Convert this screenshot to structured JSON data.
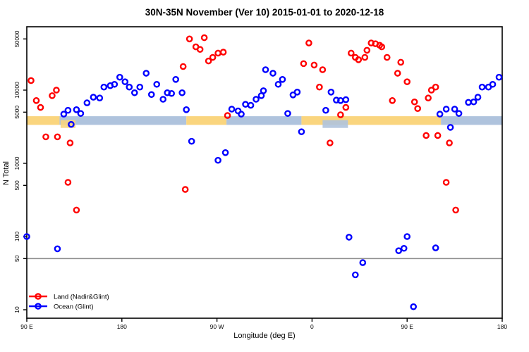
{
  "title": "30N-35N November (Ver 10)   2015-01-01 to 2020-12-18",
  "colors": {
    "land_series": "#ff0000",
    "ocean_series": "#0000ff",
    "band_land": "#fad57e",
    "band_ocean": "#afc3dd",
    "reference_line": "#8c8c8c",
    "axis": "#000000"
  },
  "legend": {
    "items": [
      {
        "label": "Land (Nadir&Glint)",
        "color": "#ff0000"
      },
      {
        "label": "Ocean (Glint)",
        "color": "#0000ff"
      }
    ]
  },
  "chart_data": {
    "type": "scatter",
    "title": "30N-35N November (Ver 10)   2015-01-01 to 2020-12-18",
    "xlabel": "Longitude (deg E)",
    "ylabel": "N Total",
    "x_axis": {
      "note": "longitude axis starts at 90E and wraps eastward 450 degrees",
      "range_deg": [
        90,
        540
      ],
      "ticks": [
        {
          "deg": 90,
          "label": "90 E"
        },
        {
          "deg": 180,
          "label": "180"
        },
        {
          "deg": 270,
          "label": "90 W"
        },
        {
          "deg": 360,
          "label": "0"
        },
        {
          "deg": 450,
          "label": "90 E"
        },
        {
          "deg": 540,
          "label": "180"
        }
      ]
    },
    "y_axis": {
      "scale": "log",
      "range": [
        8,
        70000
      ],
      "ticks": [
        10,
        50,
        100,
        500,
        1000,
        5000,
        10000,
        50000
      ]
    },
    "reference_line": {
      "value": 50
    },
    "land_ocean_band": {
      "top_value": 4400,
      "bottom_value": 3350,
      "segments": [
        {
          "from": 90,
          "to": 121,
          "type": "land"
        },
        {
          "from": 121,
          "to": 241,
          "type": "ocean"
        },
        {
          "from": 241,
          "to": 279,
          "type": "land"
        },
        {
          "from": 279,
          "to": 350,
          "type": "ocean"
        },
        {
          "from": 350,
          "to": 482,
          "type": "land"
        },
        {
          "from": 482,
          "to": 540,
          "type": "ocean"
        }
      ],
      "lower_patches": [
        {
          "from": 122,
          "to": 136,
          "type": "land"
        },
        {
          "from": 370,
          "to": 394,
          "type": "ocean"
        }
      ]
    },
    "series": [
      {
        "name": "Land (Nadir&Glint)",
        "color": "#ff0000",
        "points": [
          [
            94,
            13500
          ],
          [
            99,
            7200
          ],
          [
            103,
            5800
          ],
          [
            114,
            8400
          ],
          [
            118,
            10000
          ],
          [
            108,
            2300
          ],
          [
            119,
            2300
          ],
          [
            131,
            1900
          ],
          [
            129,
            550
          ],
          [
            137,
            230
          ],
          [
            240,
            440
          ],
          [
            238,
            21000
          ],
          [
            244,
            50000
          ],
          [
            258,
            52000
          ],
          [
            250,
            39000
          ],
          [
            254,
            36000
          ],
          [
            262,
            25000
          ],
          [
            266,
            28000
          ],
          [
            271,
            32000
          ],
          [
            276,
            33000
          ],
          [
            280,
            4500
          ],
          [
            352,
            23000
          ],
          [
            357,
            44000
          ],
          [
            362,
            22000
          ],
          [
            370,
            19000
          ],
          [
            367,
            11000
          ],
          [
            387,
            4600
          ],
          [
            392,
            5800
          ],
          [
            377,
            1900
          ],
          [
            397,
            32000
          ],
          [
            401,
            28000
          ],
          [
            404,
            26000
          ],
          [
            410,
            28000
          ],
          [
            412,
            35000
          ],
          [
            416,
            44000
          ],
          [
            420,
            43000
          ],
          [
            424,
            41000
          ],
          [
            426,
            39000
          ],
          [
            431,
            28000
          ],
          [
            436,
            7200
          ],
          [
            441,
            17000
          ],
          [
            444,
            24000
          ],
          [
            450,
            13000
          ],
          [
            457,
            6900
          ],
          [
            460,
            5600
          ],
          [
            468,
            2400
          ],
          [
            470,
            7800
          ],
          [
            473,
            10000
          ],
          [
            477,
            11000
          ],
          [
            479,
            2400
          ],
          [
            490,
            1900
          ],
          [
            487,
            550
          ],
          [
            496,
            230
          ]
        ]
      },
      {
        "name": "Ocean (Glint)",
        "color": "#0000ff",
        "points": [
          [
            90,
            100
          ],
          [
            119,
            68
          ],
          [
            125,
            4700
          ],
          [
            129,
            5300
          ],
          [
            132,
            3400
          ],
          [
            137,
            5400
          ],
          [
            141,
            4800
          ],
          [
            147,
            6700
          ],
          [
            153,
            8000
          ],
          [
            159,
            7800
          ],
          [
            163,
            11000
          ],
          [
            169,
            11500
          ],
          [
            173,
            12000
          ],
          [
            178,
            15000
          ],
          [
            183,
            13000
          ],
          [
            187,
            11000
          ],
          [
            192,
            9200
          ],
          [
            197,
            11000
          ],
          [
            203,
            17000
          ],
          [
            208,
            8700
          ],
          [
            213,
            12000
          ],
          [
            219,
            7500
          ],
          [
            223,
            9200
          ],
          [
            227,
            9000
          ],
          [
            231,
            14000
          ],
          [
            237,
            9200
          ],
          [
            241,
            5400
          ],
          [
            246,
            2000
          ],
          [
            271,
            1100
          ],
          [
            278,
            1400
          ],
          [
            284,
            5500
          ],
          [
            290,
            5200
          ],
          [
            293,
            4700
          ],
          [
            297,
            6400
          ],
          [
            302,
            6200
          ],
          [
            307,
            7500
          ],
          [
            312,
            8400
          ],
          [
            314,
            9800
          ],
          [
            316,
            19000
          ],
          [
            323,
            17000
          ],
          [
            328,
            12000
          ],
          [
            332,
            14000
          ],
          [
            337,
            4800
          ],
          [
            342,
            8600
          ],
          [
            346,
            9400
          ],
          [
            350,
            2700
          ],
          [
            373,
            5300
          ],
          [
            378,
            9400
          ],
          [
            383,
            7300
          ],
          [
            387,
            7200
          ],
          [
            392,
            7400
          ],
          [
            395,
            98
          ],
          [
            401,
            30
          ],
          [
            408,
            44
          ],
          [
            442,
            64
          ],
          [
            447,
            69
          ],
          [
            450,
            100
          ],
          [
            456,
            11
          ],
          [
            477,
            70
          ],
          [
            481,
            4700
          ],
          [
            487,
            5500
          ],
          [
            491,
            3100
          ],
          [
            495,
            5500
          ],
          [
            499,
            4800
          ],
          [
            508,
            6800
          ],
          [
            513,
            6900
          ],
          [
            517,
            8000
          ],
          [
            521,
            11000
          ],
          [
            527,
            11000
          ],
          [
            531,
            12000
          ],
          [
            537,
            15000
          ]
        ]
      }
    ]
  }
}
